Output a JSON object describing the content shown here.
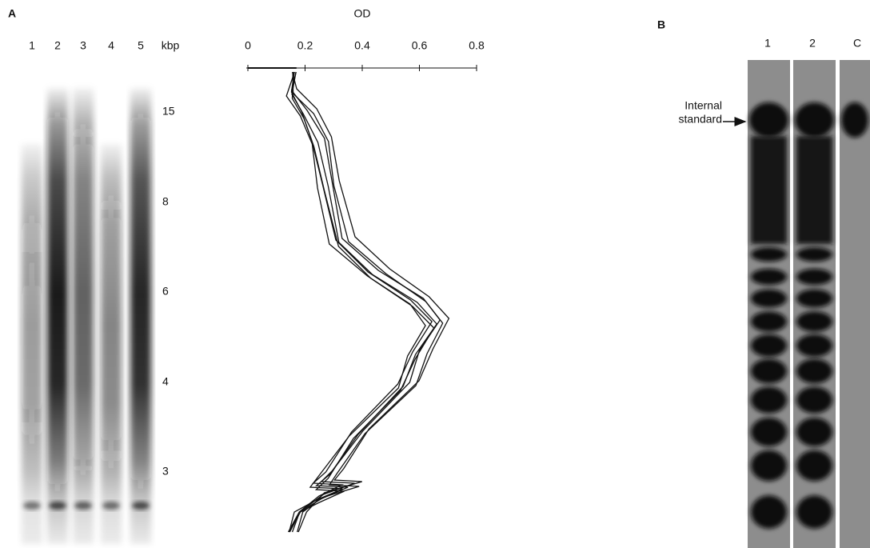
{
  "panel_a": {
    "label": "A",
    "lanes": [
      "1",
      "2",
      "3",
      "4",
      "5"
    ],
    "size_unit": "kbp",
    "size_markers": [
      "15",
      "8",
      "6",
      "4",
      "3"
    ],
    "od_axis": {
      "title": "OD",
      "xlim": [
        0,
        0.8
      ],
      "xticks": [
        0,
        0.2,
        0.4,
        0.6,
        0.8
      ]
    }
  },
  "panel_b": {
    "label": "B",
    "lanes": [
      "1",
      "2",
      "C"
    ],
    "annotation": [
      "Internal",
      "standard"
    ]
  }
}
